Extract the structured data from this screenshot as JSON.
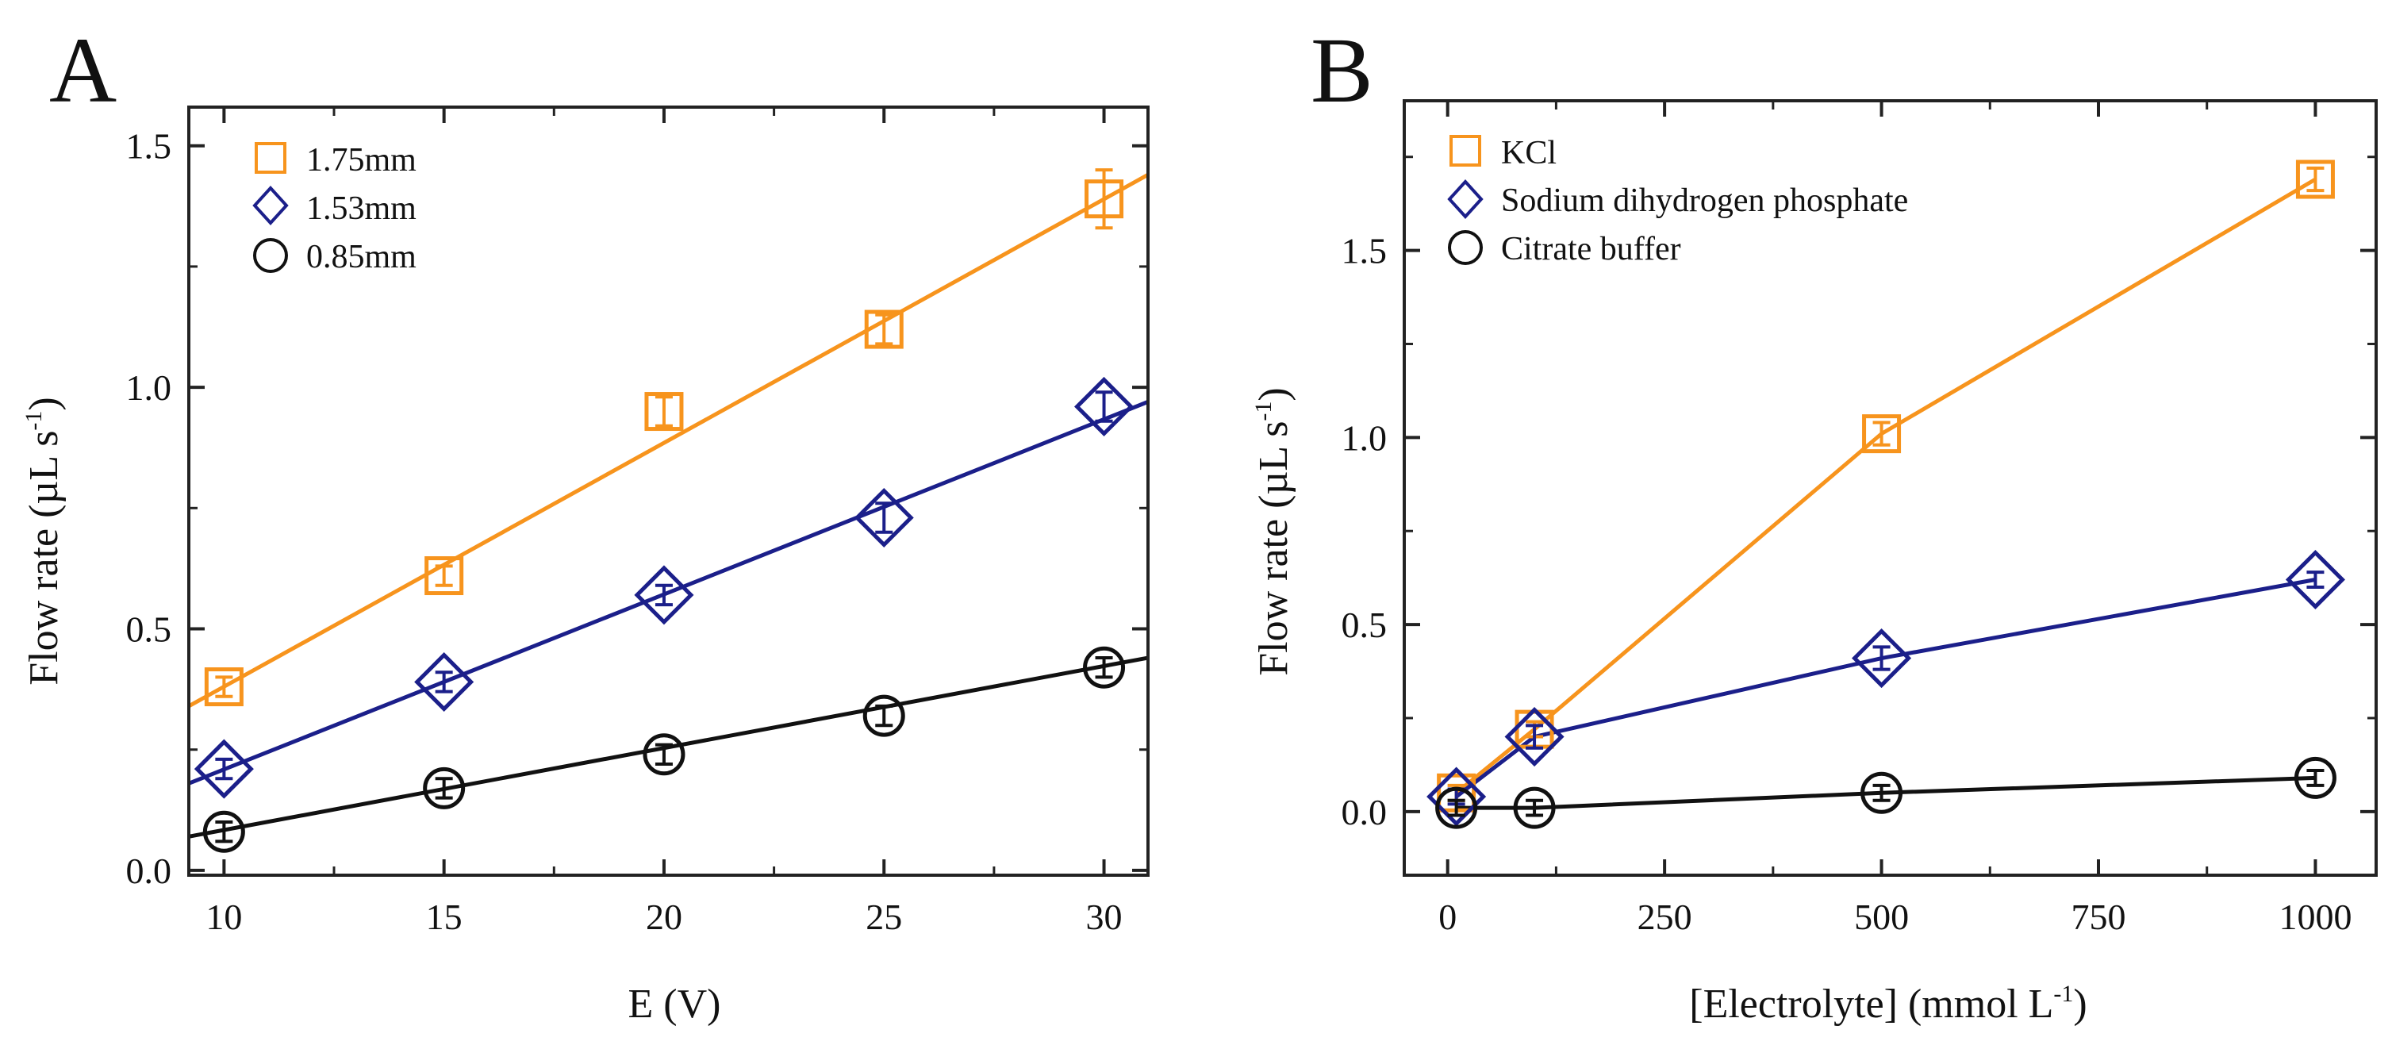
{
  "chart_data": [
    {
      "panel": "A",
      "type": "scatter",
      "xlabel": "E (V)",
      "ylabel": "Flow rate (µL s",
      "ylabel_sup": "-1",
      "ylabel_close": ")",
      "xlim": [
        9.2,
        31
      ],
      "ylim": [
        -0.01,
        1.58
      ],
      "xticks": [
        10,
        15,
        20,
        25,
        30
      ],
      "xtick_labels": [
        "10",
        "15",
        "20",
        "25",
        "30"
      ],
      "yticks": [
        0.0,
        0.5,
        1.0,
        1.5
      ],
      "ytick_labels": [
        "0.0",
        "0.5",
        "1.0",
        "1.5"
      ],
      "legend_position": "top-left",
      "fit": "linear",
      "series": [
        {
          "name": "1.75mm",
          "marker": "square",
          "color": "#f7941d",
          "x": [
            10,
            15,
            20,
            25,
            30
          ],
          "values": [
            0.38,
            0.61,
            0.95,
            1.12,
            1.39
          ],
          "err": [
            0.02,
            0.02,
            0.03,
            0.03,
            0.06
          ],
          "fit_x": [
            9.2,
            31
          ],
          "fit_y": [
            0.34,
            1.44
          ]
        },
        {
          "name": "1.53mm",
          "marker": "diamond",
          "color": "#1b1f8a",
          "x": [
            10,
            15,
            20,
            25,
            30
          ],
          "values": [
            0.21,
            0.39,
            0.57,
            0.73,
            0.96
          ],
          "err": [
            0.02,
            0.02,
            0.02,
            0.03,
            0.03
          ],
          "fit_x": [
            9.2,
            31
          ],
          "fit_y": [
            0.18,
            0.97
          ]
        },
        {
          "name": "0.85mm",
          "marker": "circle",
          "color": "#111111",
          "x": [
            10,
            15,
            20,
            25,
            30
          ],
          "values": [
            0.08,
            0.17,
            0.24,
            0.32,
            0.42
          ],
          "err": [
            0.02,
            0.02,
            0.02,
            0.02,
            0.02
          ],
          "fit_x": [
            9.2,
            31
          ],
          "fit_y": [
            0.07,
            0.44
          ]
        }
      ]
    },
    {
      "panel": "B",
      "type": "line",
      "xlabel": "[Electrolyte] (mmol L",
      "xlabel_sup": "-1",
      "xlabel_close": ")",
      "ylabel": "Flow rate (µL s",
      "ylabel_sup": "-1",
      "ylabel_close": ")",
      "xlim": [
        -50,
        1070
      ],
      "ylim": [
        -0.17,
        1.9
      ],
      "xticks": [
        0,
        250,
        500,
        750,
        1000
      ],
      "xtick_labels": [
        "0",
        "250",
        "500",
        "750",
        "1000"
      ],
      "yticks": [
        0.0,
        0.5,
        1.0,
        1.5
      ],
      "ytick_labels": [
        "0.0",
        "0.5",
        "1.0",
        "1.5"
      ],
      "legend_position": "top-left",
      "series": [
        {
          "name": "KCl",
          "marker": "square",
          "color": "#f7941d",
          "x": [
            10,
            100,
            500,
            1000
          ],
          "values": [
            0.05,
            0.22,
            1.01,
            1.69
          ],
          "err": [
            0.02,
            0.02,
            0.03,
            0.03
          ]
        },
        {
          "name": "Sodium dihydrogen phosphate",
          "marker": "diamond",
          "color": "#1b1f8a",
          "x": [
            10,
            100,
            500,
            1000
          ],
          "values": [
            0.04,
            0.2,
            0.41,
            0.62
          ],
          "err": [
            0.02,
            0.03,
            0.03,
            0.02
          ]
        },
        {
          "name": "Citrate buffer",
          "marker": "circle",
          "color": "#111111",
          "x": [
            10,
            100,
            500,
            1000
          ],
          "values": [
            0.01,
            0.01,
            0.05,
            0.09
          ],
          "err": [
            0.02,
            0.02,
            0.02,
            0.02
          ]
        }
      ]
    }
  ]
}
